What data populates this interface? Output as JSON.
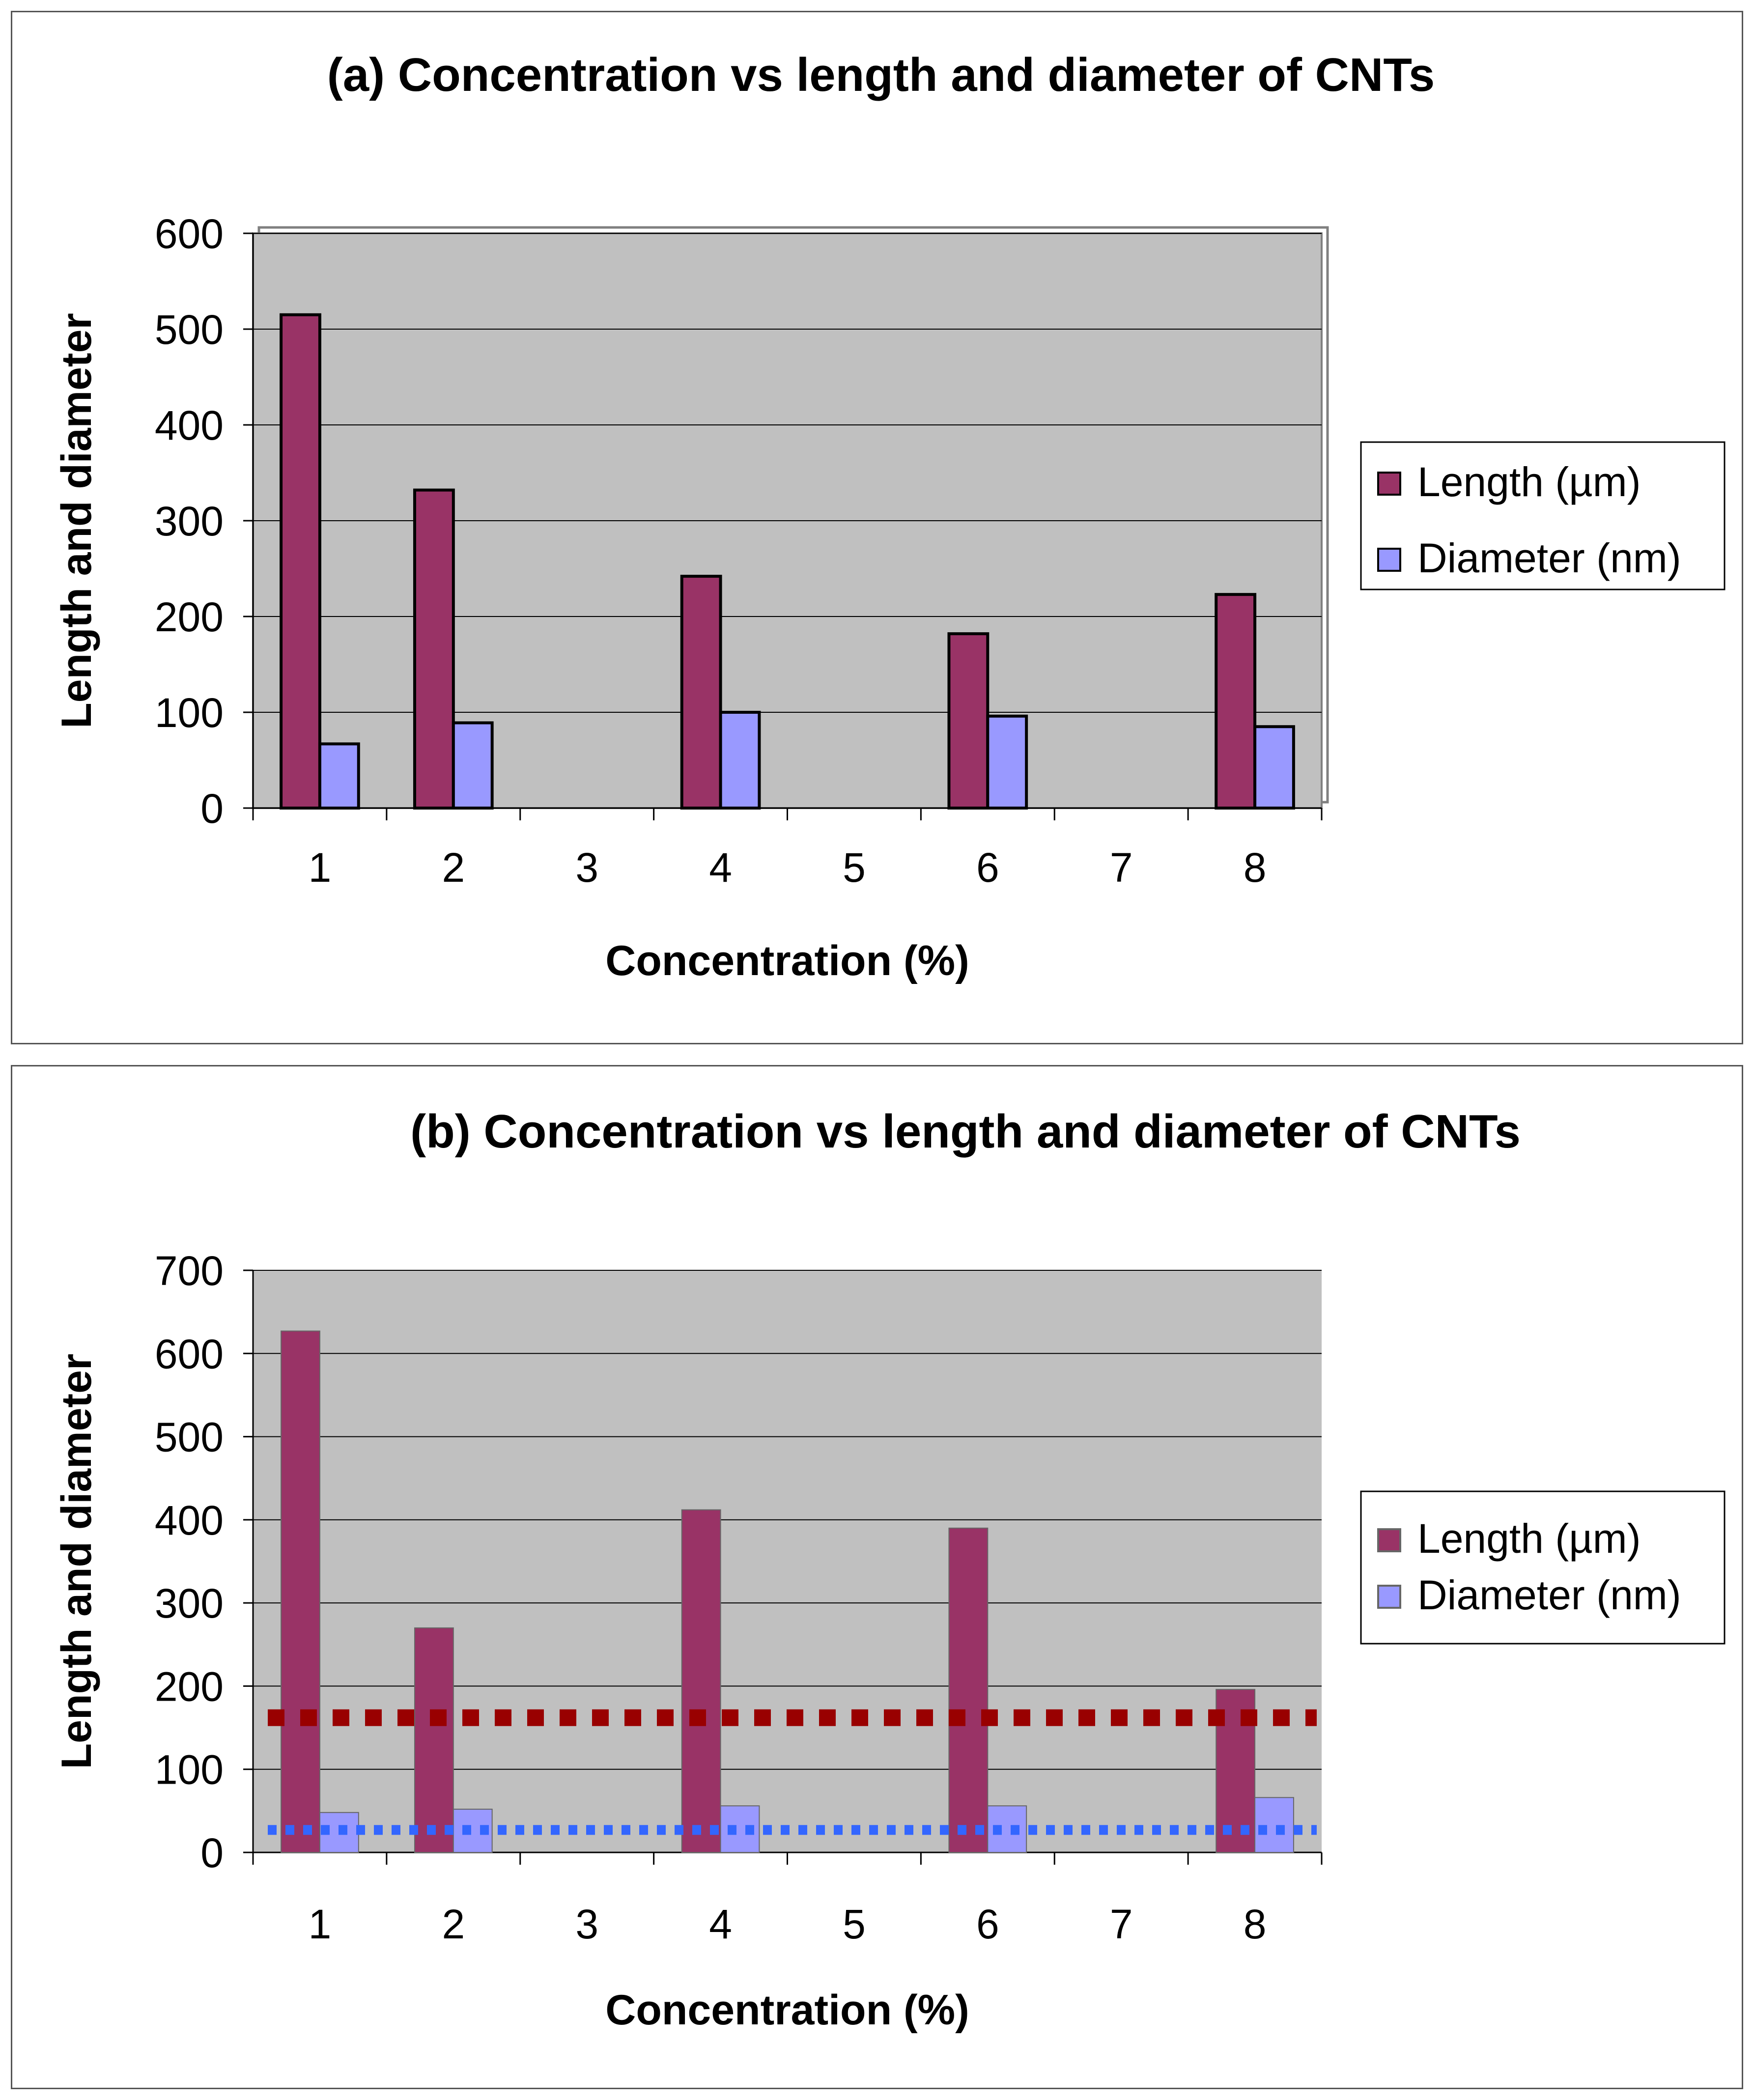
{
  "colors": {
    "length": "#993366",
    "diameter": "#9999ff",
    "plot_bg": "#c0c0c0",
    "length_avg_line": "#990000",
    "diameter_avg_line": "#3366ff"
  },
  "chart_data": [
    {
      "type": "bar",
      "title": "(a) Concentration vs length and diameter of CNTs",
      "xlabel": "Concentration (%)",
      "ylabel": "Length and diameter",
      "categories": [
        "1",
        "2",
        "3",
        "4",
        "5",
        "6",
        "7",
        "8"
      ],
      "ylim": [
        0,
        600
      ],
      "yticks": [
        0,
        100,
        200,
        300,
        400,
        500,
        600
      ],
      "grid": true,
      "legend_position": "right",
      "series": [
        {
          "name": "Length (µm)",
          "values": [
            515,
            332,
            null,
            242,
            null,
            182,
            null,
            223
          ]
        },
        {
          "name": "Diameter (nm)",
          "values": [
            67,
            89,
            null,
            100,
            null,
            96,
            null,
            85
          ]
        }
      ]
    },
    {
      "type": "bar",
      "title": "(b) Concentration vs length and diameter of CNTs",
      "xlabel": "Concentration (%)",
      "ylabel": "Length and diameter",
      "categories": [
        "1",
        "2",
        "3",
        "4",
        "5",
        "6",
        "7",
        "8"
      ],
      "ylim": [
        0,
        700
      ],
      "yticks": [
        0,
        100,
        200,
        300,
        400,
        500,
        600,
        700
      ],
      "grid": true,
      "legend_position": "right",
      "series": [
        {
          "name": "Length (µm)",
          "values": [
            627,
            270,
            null,
            412,
            null,
            390,
            null,
            196
          ]
        },
        {
          "name": "Diameter (nm)",
          "values": [
            48,
            52,
            null,
            56,
            null,
            56,
            null,
            66
          ]
        }
      ],
      "reference_lines": [
        {
          "series": "Length (µm)",
          "value": 162,
          "style": "dotted"
        },
        {
          "series": "Diameter (nm)",
          "value": 27,
          "style": "dotted"
        }
      ]
    }
  ]
}
